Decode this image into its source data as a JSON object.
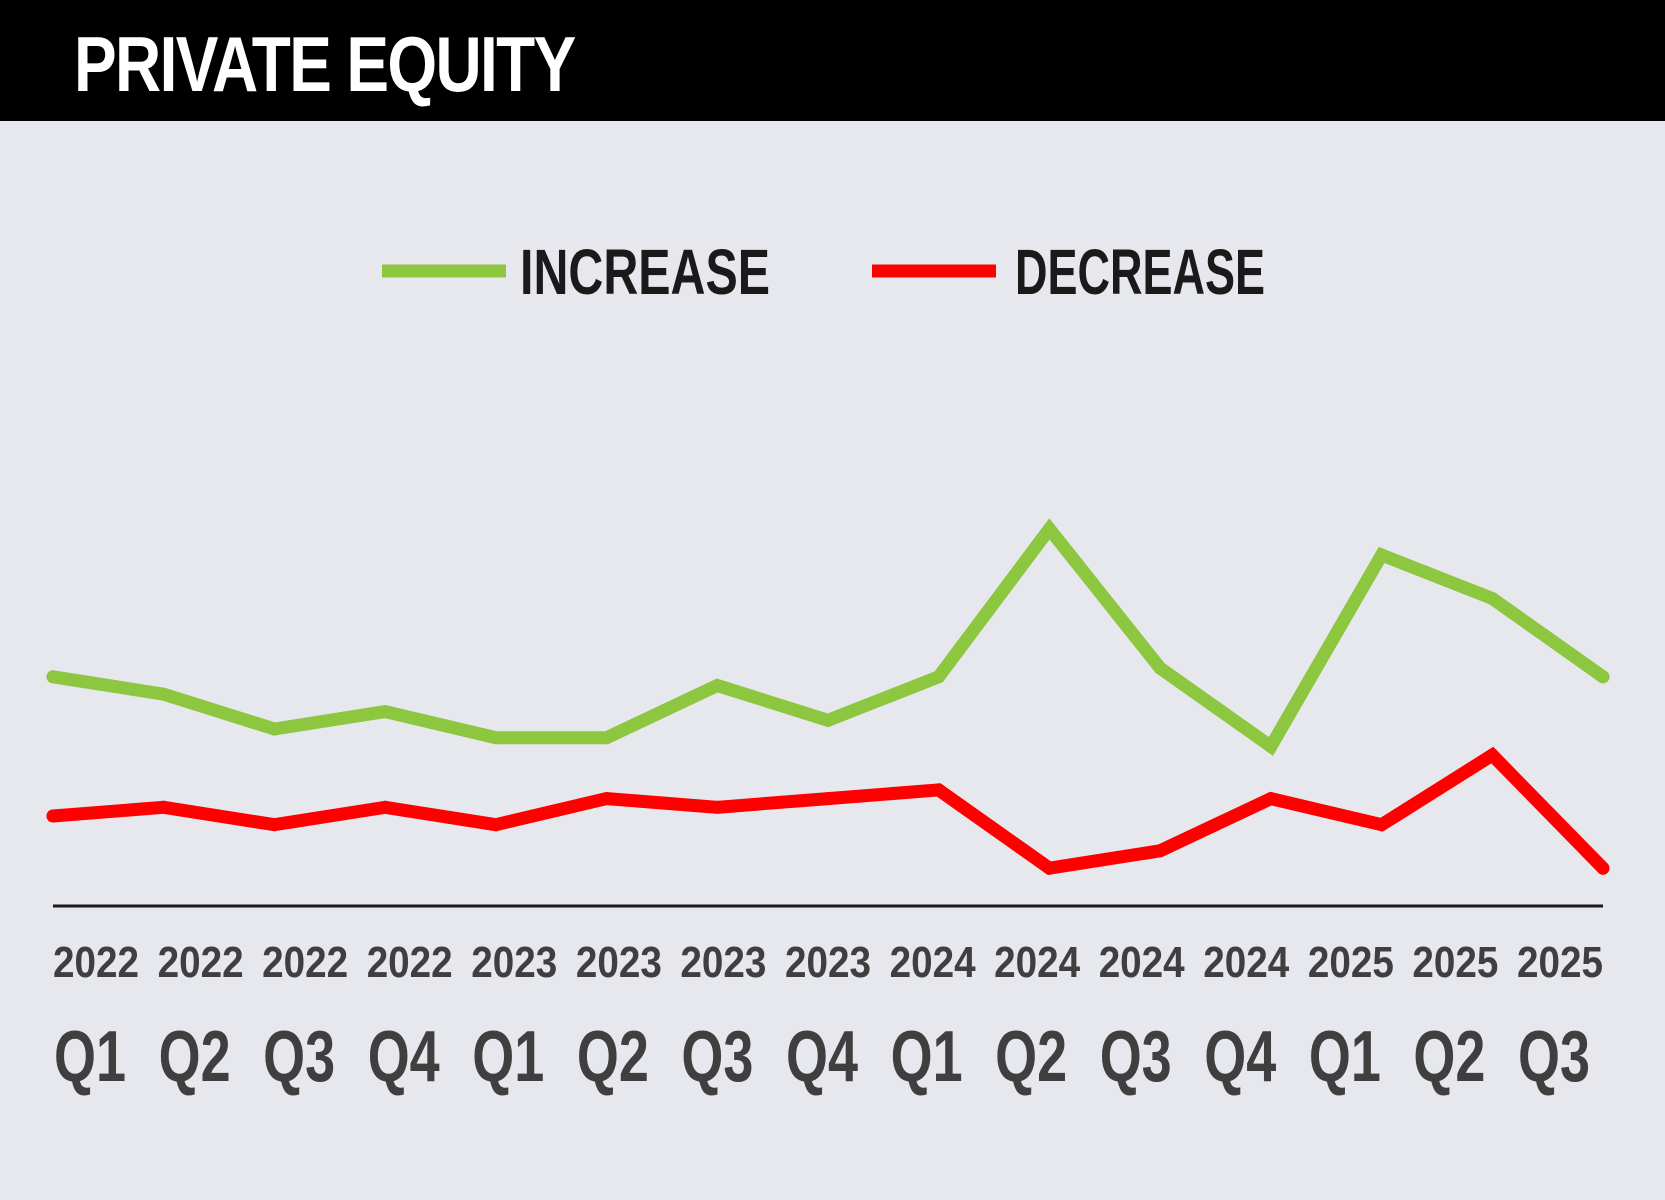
{
  "header": {
    "title": "PRIVATE EQUITY"
  },
  "colors": {
    "increase": "#8dc63f",
    "decrease": "#ff0000",
    "header_bg": "#000000",
    "background": "#e7e8ed",
    "axis_text": "#3f3f3f"
  },
  "chart_data": {
    "type": "line",
    "title": "PRIVATE EQUITY",
    "categories": [
      {
        "year": "2022",
        "quarter": "Q1"
      },
      {
        "year": "2022",
        "quarter": "Q2"
      },
      {
        "year": "2022",
        "quarter": "Q3"
      },
      {
        "year": "2022",
        "quarter": "Q4"
      },
      {
        "year": "2023",
        "quarter": "Q1"
      },
      {
        "year": "2023",
        "quarter": "Q2"
      },
      {
        "year": "2023",
        "quarter": "Q3"
      },
      {
        "year": "2023",
        "quarter": "Q4"
      },
      {
        "year": "2024",
        "quarter": "Q1"
      },
      {
        "year": "2024",
        "quarter": "Q2"
      },
      {
        "year": "2024",
        "quarter": "Q3"
      },
      {
        "year": "2024",
        "quarter": "Q4"
      },
      {
        "year": "2025",
        "quarter": "Q1"
      },
      {
        "year": "2025",
        "quarter": "Q2"
      },
      {
        "year": "2025",
        "quarter": "Q3"
      }
    ],
    "series": [
      {
        "name": "INCREASE",
        "color": "#8dc63f",
        "values": [
          66,
          64,
          60,
          62,
          59,
          59,
          65,
          61,
          66,
          83,
          67,
          58,
          80,
          75,
          66
        ]
      },
      {
        "name": "DECREASE",
        "color": "#ff0000",
        "values": [
          50,
          51,
          49,
          51,
          49,
          52,
          51,
          52,
          53,
          44,
          46,
          52,
          49,
          57,
          44
        ]
      }
    ],
    "ylim": [
      0,
      100
    ],
    "y_axis_shown": false,
    "grid": false,
    "legend_position": "top-center"
  }
}
